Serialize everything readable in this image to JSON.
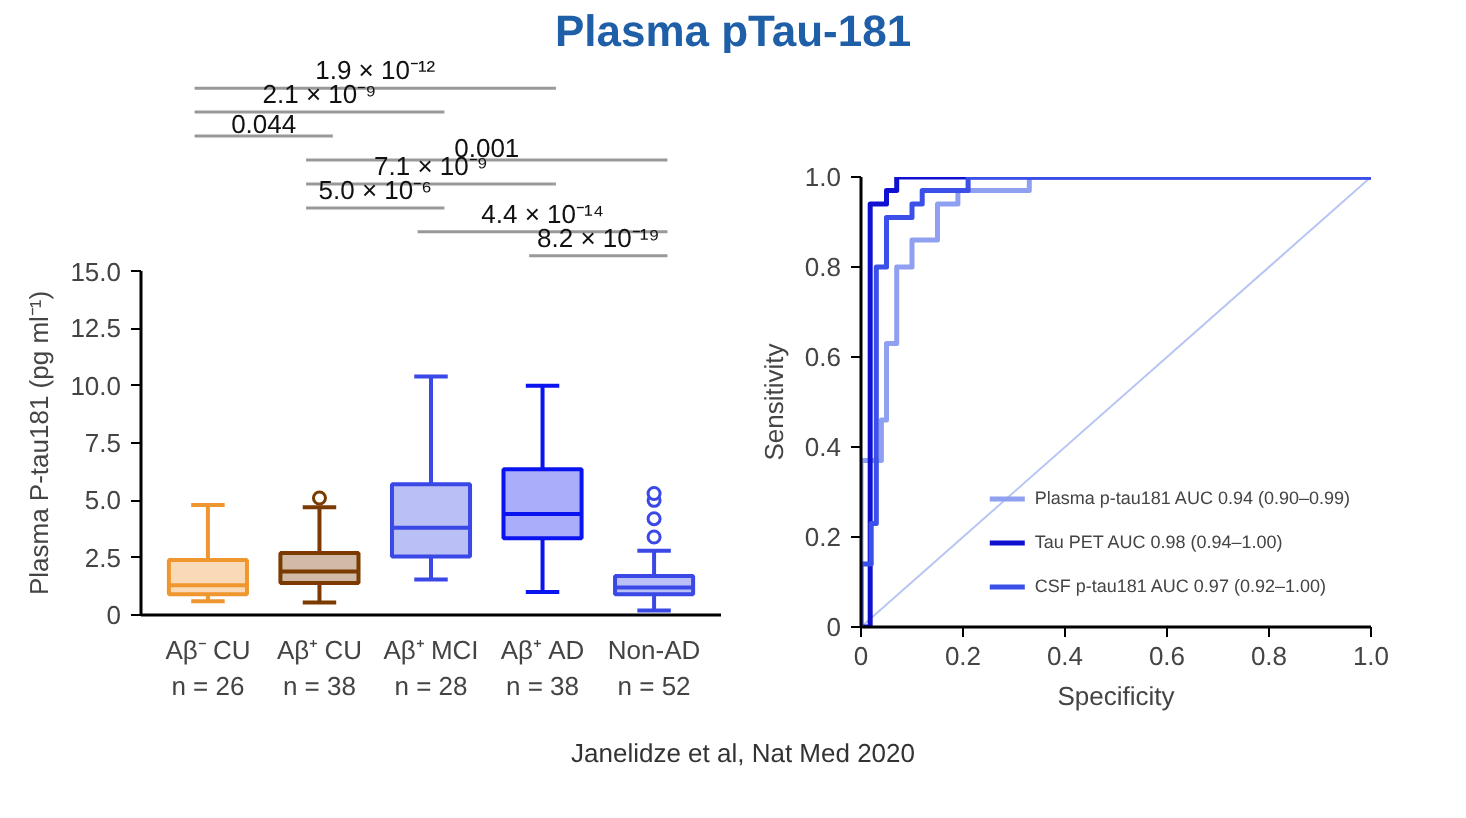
{
  "chart_data": [
    {
      "type": "box",
      "title": "Plasma pTau-181",
      "ylabel": "Plasma P-tau181 (pg ml⁻¹)",
      "categories": [
        "Aβ⁻ CU\nn = 26",
        "Aβ⁺ CU\nn = 38",
        "Aβ⁺ MCI\nn = 28",
        "Aβ⁺ AD\nn = 38",
        "Non-AD\nn = 52"
      ],
      "colors": [
        "#f0962e",
        "#7a3a00",
        "#3a48e6",
        "#0a14f0",
        "#3a48e6"
      ],
      "boxes": [
        {
          "low": 0.6,
          "q1": 0.9,
          "median": 1.3,
          "q3": 2.4,
          "high": 4.8
        },
        {
          "low": 0.55,
          "q1": 1.4,
          "median": 1.9,
          "q3": 2.7,
          "high": 4.7,
          "outliers": [
            5.1
          ]
        },
        {
          "low": 1.55,
          "q1": 2.55,
          "median": 3.8,
          "q3": 5.7,
          "high": 10.4
        },
        {
          "low": 1.0,
          "q1": 3.35,
          "median": 4.4,
          "q3": 6.35,
          "high": 10.0
        },
        {
          "low": 0.2,
          "q1": 0.9,
          "median": 1.2,
          "q3": 1.7,
          "high": 2.8,
          "outliers": [
            3.4,
            4.2,
            5.0,
            5.3
          ]
        }
      ],
      "ylim": [
        0,
        15
      ],
      "yticks": [
        0,
        2.5,
        {
          "value": 5,
          "label": "5.0"
        },
        7.5,
        {
          "value": 10,
          "label": "10.0"
        },
        12.5,
        {
          "value": 15,
          "label": "15.0"
        }
      ],
      "grid": false,
      "annotations": [
        "1.9 × 10⁻¹²",
        "2.1 × 10⁻⁹",
        "0.044",
        "0.001",
        "7.1 × 10⁻⁹",
        "5.0 × 10⁻⁶",
        "4.4 × 10⁻¹⁴",
        "8.2 × 10⁻¹⁹"
      ]
    },
    {
      "type": "line",
      "xlabel": "Specificity",
      "ylabel": "Sensitivity",
      "xlim": [
        0,
        1
      ],
      "ylim": [
        0,
        1
      ],
      "xticks": [
        0,
        0.2,
        0.4,
        0.6,
        0.8,
        {
          "value": 1,
          "label": "1.0"
        }
      ],
      "yticks": [
        0,
        0.2,
        0.4,
        0.6,
        0.8,
        {
          "value": 1,
          "label": "1.0"
        }
      ],
      "grid": false,
      "legend": "bottom right",
      "marker": "none",
      "series": [
        {
          "color": "#b8c4f4",
          "x": [
            0,
            1
          ],
          "values": [
            0,
            1
          ]
        },
        {
          "name": "Plasma p-tau181 AUC 0.94 (0.90–0.99)",
          "color": "#8fa0f0",
          "x": [
            0,
            0,
            0.04,
            0.04,
            0.05,
            0.05,
            0.07,
            0.07,
            0.1,
            0.1,
            0.15,
            0.15,
            0.19,
            0.19,
            0.33,
            0.33,
            1
          ],
          "values": [
            0,
            0.37,
            0.37,
            0.46,
            0.46,
            0.63,
            0.63,
            0.8,
            0.8,
            0.86,
            0.86,
            0.94,
            0.94,
            0.97,
            0.97,
            1,
            1
          ]
        },
        {
          "name": "Tau PET AUC 0.98 (0.94–1.00)",
          "color": "#1010d0",
          "x": [
            0,
            0.018,
            0.018,
            0.05,
            0.05,
            0.07,
            0.07,
            1
          ],
          "values": [
            0,
            0,
            0.94,
            0.94,
            0.97,
            0.97,
            1,
            1
          ]
        },
        {
          "name": "CSF p-tau181 AUC 0.97 (0.92–1.00)",
          "color": "#3a50e8",
          "x": [
            0,
            0,
            0.02,
            0.02,
            0.03,
            0.03,
            0.05,
            0.05,
            0.1,
            0.1,
            0.12,
            0.12,
            0.21,
            0.21,
            1
          ],
          "values": [
            0,
            0.14,
            0.14,
            0.23,
            0.23,
            0.8,
            0.8,
            0.91,
            0.91,
            0.94,
            0.94,
            0.97,
            0.97,
            1,
            1
          ]
        }
      ],
      "annotations": [
        "Janelidze et al, Nat Med 2020"
      ]
    }
  ]
}
